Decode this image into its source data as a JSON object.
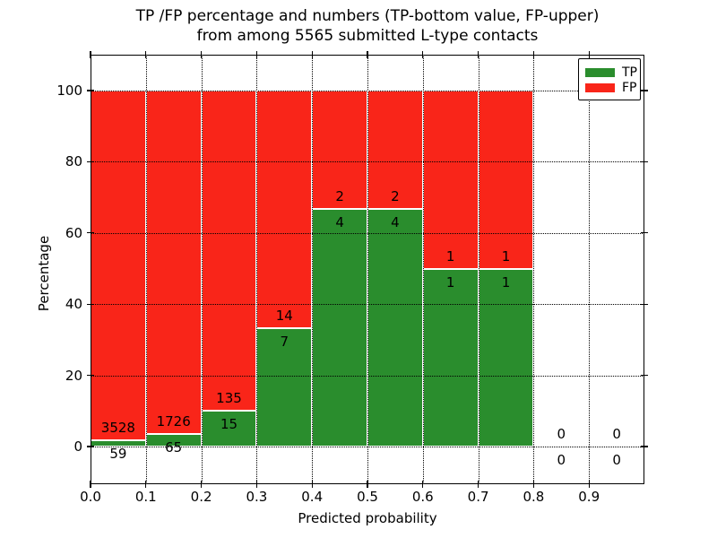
{
  "title": {
    "line1": "TP /FP percentage and numbers (TP-bottom value, FP-upper)",
    "line2": "from among 5565 submitted L-type contacts"
  },
  "axes": {
    "xlabel": "Predicted probability",
    "ylabel": "Percentage",
    "xticks": [
      "0.0",
      "0.1",
      "0.2",
      "0.3",
      "0.4",
      "0.5",
      "0.6",
      "0.7",
      "0.8",
      "0.9"
    ],
    "yticks": [
      0,
      20,
      40,
      60,
      80,
      100
    ]
  },
  "legend": {
    "items": [
      {
        "label": "TP",
        "color": "#2a8d2d"
      },
      {
        "label": "FP",
        "color": "#f92519"
      }
    ]
  },
  "colors": {
    "tp": "#2a8d2d",
    "fp": "#f92519",
    "grid": "#000000",
    "text": "#000000",
    "background": "#ffffff"
  },
  "chart_data": {
    "type": "bar",
    "stacked": true,
    "title": "TP /FP percentage and numbers (TP-bottom value, FP-upper) from among 5565 submitted L-type contacts",
    "xlabel": "Predicted probability",
    "ylabel": "Percentage",
    "xlim": [
      0.0,
      1.0
    ],
    "ylim": [
      -10,
      110
    ],
    "grid": true,
    "legend_position": "upper right",
    "bin_width": 0.1,
    "n_submitted": 5565,
    "annotation_rule": "FP count printed above the TP/FP boundary, TP count printed below it",
    "series": [
      {
        "name": "TP",
        "stack_role": "bottom"
      },
      {
        "name": "FP",
        "stack_role": "top"
      }
    ],
    "bins": [
      {
        "x0": 0.0,
        "x1": 0.1,
        "tp": 59,
        "fp": 3528
      },
      {
        "x0": 0.1,
        "x1": 0.2,
        "tp": 65,
        "fp": 1726
      },
      {
        "x0": 0.2,
        "x1": 0.3,
        "tp": 15,
        "fp": 135
      },
      {
        "x0": 0.3,
        "x1": 0.4,
        "tp": 7,
        "fp": 14
      },
      {
        "x0": 0.4,
        "x1": 0.5,
        "tp": 4,
        "fp": 2
      },
      {
        "x0": 0.5,
        "x1": 0.6,
        "tp": 4,
        "fp": 2
      },
      {
        "x0": 0.6,
        "x1": 0.7,
        "tp": 1,
        "fp": 1
      },
      {
        "x0": 0.7,
        "x1": 0.8,
        "tp": 1,
        "fp": 1
      },
      {
        "x0": 0.8,
        "x1": 0.9,
        "tp": 0,
        "fp": 0
      },
      {
        "x0": 0.9,
        "x1": 1.0,
        "tp": 0,
        "fp": 0
      }
    ]
  }
}
